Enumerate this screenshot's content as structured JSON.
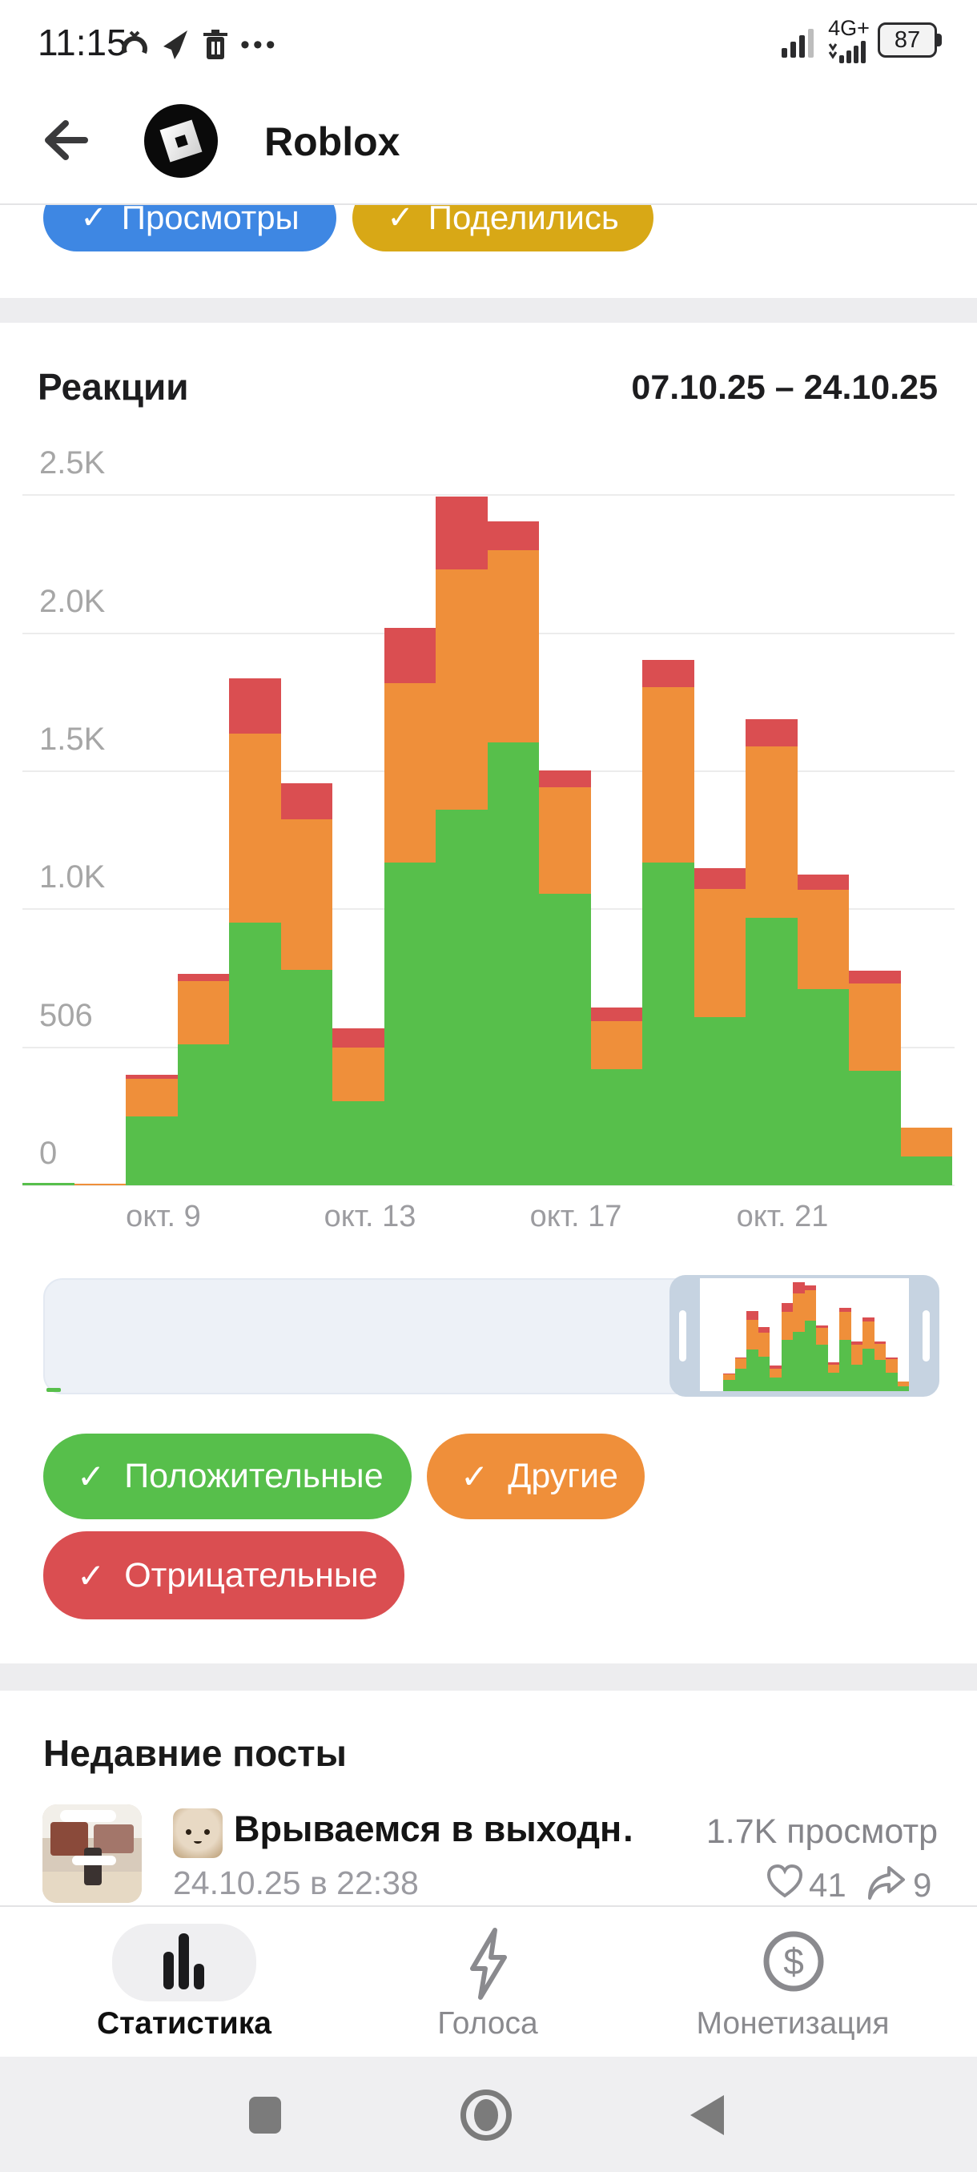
{
  "status_bar": {
    "time": "11:15",
    "network_label": "4G+",
    "battery_level": "87",
    "more_dots": "•••"
  },
  "header": {
    "title": "Roblox"
  },
  "filter_chips": {
    "views_label": "Просмотры",
    "shares_label": "Поделились",
    "check": "✓",
    "views_color": "#3e87e3",
    "shares_color": "#d8a816"
  },
  "chart": {
    "title": "Реакции",
    "date_range": "07.10.25 – 24.10.25",
    "y_ticks": [
      "2.5K",
      "2.0K",
      "1.5K",
      "1.0K",
      "506",
      "0"
    ],
    "x_ticks": [
      "окт. 9",
      "окт. 13",
      "окт. 17",
      "окт. 21"
    ]
  },
  "chart_data": {
    "type": "bar",
    "stacked": true,
    "title": "Реакции",
    "date_range": "07.10.25 – 24.10.25",
    "x": [
      "окт. 7",
      "окт. 8",
      "окт. 9",
      "окт. 10",
      "окт. 11",
      "окт. 12",
      "окт. 13",
      "окт. 14",
      "окт. 15",
      "окт. 16",
      "окт. 17",
      "окт. 18",
      "окт. 19",
      "окт. 20",
      "окт. 21",
      "окт. 22",
      "окт. 23",
      "окт. 24"
    ],
    "series": [
      {
        "name": "Положительные",
        "color": "#57bf4b",
        "values": [
          8,
          0,
          250,
          510,
          950,
          780,
          305,
          1170,
          1360,
          1605,
          1055,
          420,
          1170,
          610,
          970,
          710,
          415,
          105
        ]
      },
      {
        "name": "Другие",
        "color": "#ef8f3a",
        "values": [
          0,
          5,
          135,
          230,
          685,
          545,
          195,
          650,
          870,
          695,
          385,
          175,
          635,
          465,
          620,
          360,
          315,
          105
        ]
      },
      {
        "name": "Отрицательные",
        "color": "#da4e51",
        "values": [
          0,
          0,
          15,
          25,
          200,
          130,
          70,
          200,
          265,
          105,
          60,
          50,
          100,
          75,
          100,
          55,
          45,
          0
        ]
      }
    ],
    "ylim": [
      0,
      2500
    ],
    "ytick_labels": [
      "0",
      "506",
      "1.0K",
      "1.5K",
      "2.0K",
      "2.5K"
    ],
    "grid": true,
    "legend_position": "below"
  },
  "legend": [
    {
      "label": "Положительные",
      "color": "#57bf4b",
      "check": "✓"
    },
    {
      "label": "Другие",
      "color": "#ef8f3a",
      "check": "✓"
    },
    {
      "label": "Отрицательные",
      "color": "#da4e51",
      "check": "✓"
    }
  ],
  "recent_posts": {
    "heading": "Недавние посты",
    "post": {
      "title": "Врываемся в выходн…",
      "views": "1.7K просмотр",
      "date": "24.10.25 в 22:38",
      "likes": "41",
      "shares": "9"
    }
  },
  "bottom_nav": {
    "items": [
      {
        "label": "Статистика",
        "active": true
      },
      {
        "label": "Голоса",
        "active": false
      },
      {
        "label": "Монетизация",
        "active": false
      }
    ]
  }
}
